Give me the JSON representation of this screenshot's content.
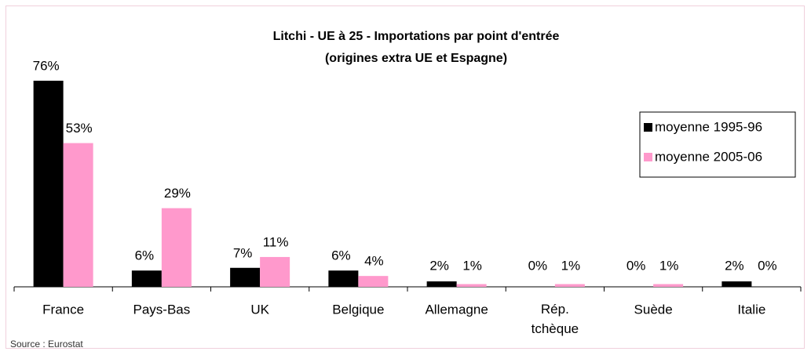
{
  "chart_data": {
    "type": "bar",
    "title": "Litchi - UE à 25 - Importations par point d'entrée",
    "subtitle": "(origines extra UE et Espagne)",
    "source": "Source : Eurostat",
    "categories": [
      "France",
      "Pays-Bas",
      "UK",
      "Belgique",
      "Allemagne",
      "Rép. tchèque",
      "Suède",
      "Italie"
    ],
    "series": [
      {
        "name": "moyenne 1995-96",
        "color": "#000000",
        "values": [
          76,
          6,
          7,
          6,
          2,
          0,
          0,
          2
        ],
        "value_labels": [
          "76%",
          "6%",
          "7%",
          "6%",
          "2%",
          "0%",
          "0%",
          "2%"
        ]
      },
      {
        "name": "moyenne 2005-06",
        "color": "#ff99cc",
        "values": [
          53,
          29,
          11,
          4,
          1,
          1,
          1,
          0
        ],
        "value_labels": [
          "53%",
          "29%",
          "11%",
          "4%",
          "1%",
          "1%",
          "1%",
          "0%"
        ]
      }
    ],
    "legend": "upper right"
  }
}
